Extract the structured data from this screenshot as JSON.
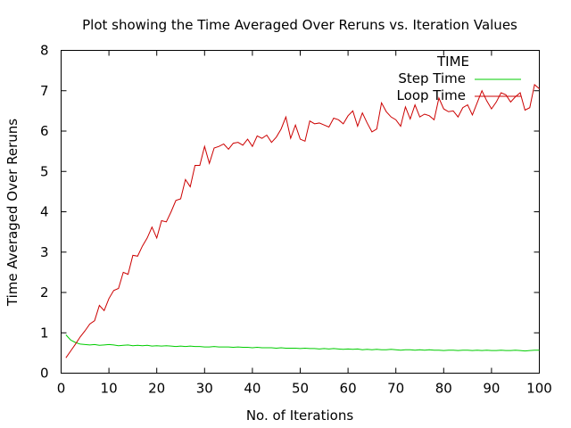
{
  "chart_data": {
    "type": "line",
    "title": "Plot showing the Time Averaged Over Reruns vs. Iteration Values",
    "xlabel": "No. of Iterations",
    "ylabel": "Time Averaged Over Reruns",
    "xlim": [
      0,
      100
    ],
    "ylim": [
      0,
      8
    ],
    "x_ticks": [
      0,
      10,
      20,
      30,
      40,
      50,
      60,
      70,
      80,
      90,
      100
    ],
    "y_ticks": [
      0,
      1,
      2,
      3,
      4,
      5,
      6,
      7,
      8
    ],
    "grid": false,
    "legend": {
      "title": "TIME",
      "position": "top-right"
    },
    "x": [
      1,
      2,
      3,
      4,
      5,
      6,
      7,
      8,
      9,
      10,
      11,
      12,
      13,
      14,
      15,
      16,
      17,
      18,
      19,
      20,
      21,
      22,
      23,
      24,
      25,
      26,
      27,
      28,
      29,
      30,
      31,
      32,
      33,
      34,
      35,
      36,
      37,
      38,
      39,
      40,
      41,
      42,
      43,
      44,
      45,
      46,
      47,
      48,
      49,
      50,
      51,
      52,
      53,
      54,
      55,
      56,
      57,
      58,
      59,
      60,
      61,
      62,
      63,
      64,
      65,
      66,
      67,
      68,
      69,
      70,
      71,
      72,
      73,
      74,
      75,
      76,
      77,
      78,
      79,
      80,
      81,
      82,
      83,
      84,
      85,
      86,
      87,
      88,
      89,
      90,
      91,
      92,
      93,
      94,
      95,
      96,
      97,
      98,
      99,
      100
    ],
    "series": [
      {
        "name": "Step Time",
        "color": "#00cc00",
        "values": [
          0.95,
          0.82,
          0.76,
          0.72,
          0.71,
          0.7,
          0.71,
          0.69,
          0.7,
          0.71,
          0.7,
          0.68,
          0.69,
          0.7,
          0.68,
          0.69,
          0.68,
          0.69,
          0.67,
          0.68,
          0.67,
          0.68,
          0.67,
          0.66,
          0.67,
          0.66,
          0.67,
          0.66,
          0.66,
          0.65,
          0.65,
          0.66,
          0.65,
          0.65,
          0.65,
          0.64,
          0.65,
          0.64,
          0.64,
          0.63,
          0.64,
          0.63,
          0.63,
          0.63,
          0.62,
          0.63,
          0.62,
          0.62,
          0.62,
          0.61,
          0.62,
          0.61,
          0.61,
          0.6,
          0.61,
          0.6,
          0.61,
          0.6,
          0.59,
          0.6,
          0.59,
          0.6,
          0.58,
          0.59,
          0.58,
          0.59,
          0.58,
          0.58,
          0.59,
          0.58,
          0.57,
          0.58,
          0.58,
          0.57,
          0.58,
          0.57,
          0.58,
          0.57,
          0.57,
          0.56,
          0.57,
          0.57,
          0.56,
          0.57,
          0.57,
          0.56,
          0.57,
          0.56,
          0.57,
          0.56,
          0.56,
          0.57,
          0.56,
          0.56,
          0.57,
          0.56,
          0.55,
          0.56,
          0.57,
          0.57
        ]
      },
      {
        "name": "Loop Time",
        "color": "#cc0000",
        "values": [
          0.38,
          0.55,
          0.72,
          0.9,
          1.05,
          1.22,
          1.3,
          1.68,
          1.55,
          1.85,
          2.05,
          2.1,
          2.5,
          2.45,
          2.92,
          2.9,
          3.15,
          3.35,
          3.62,
          3.35,
          3.78,
          3.75,
          4.0,
          4.28,
          4.32,
          4.8,
          4.62,
          5.15,
          5.15,
          5.62,
          5.2,
          5.58,
          5.62,
          5.68,
          5.55,
          5.7,
          5.72,
          5.65,
          5.8,
          5.62,
          5.88,
          5.82,
          5.9,
          5.72,
          5.85,
          6.05,
          6.35,
          5.82,
          6.15,
          5.8,
          5.75,
          6.25,
          6.18,
          6.2,
          6.15,
          6.1,
          6.32,
          6.28,
          6.18,
          6.38,
          6.5,
          6.12,
          6.45,
          6.2,
          5.98,
          6.05,
          6.7,
          6.48,
          6.35,
          6.28,
          6.12,
          6.6,
          6.3,
          6.65,
          6.35,
          6.42,
          6.38,
          6.28,
          6.82,
          6.55,
          6.48,
          6.5,
          6.35,
          6.58,
          6.65,
          6.4,
          6.7,
          7.0,
          6.75,
          6.55,
          6.72,
          6.95,
          6.9,
          6.72,
          6.85,
          6.95,
          6.52,
          6.58,
          7.15,
          7.05
        ]
      }
    ]
  }
}
